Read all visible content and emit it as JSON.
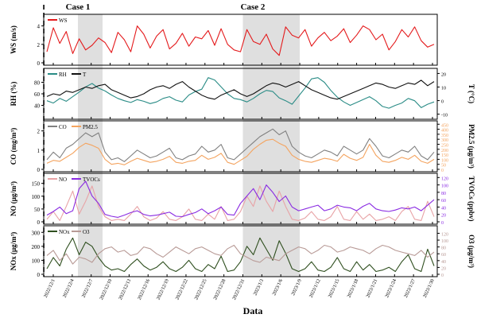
{
  "figure": {
    "case_labels": [
      "Case 1",
      "Case 2"
    ],
    "x_title": "Data",
    "colors": {
      "ws": "#e41a1c",
      "rh": "#2a8c86",
      "t": "#111111",
      "co": "#808080",
      "pm25": "#f4a460",
      "no": "#e8a3a6",
      "tvocs": "#8a2be2",
      "no2": "#2f4f1f",
      "o3": "#b89a96",
      "shade": "#d9d9d9"
    }
  },
  "chart_data": [
    {
      "type": "line",
      "panel": "WS",
      "x_tick_labels": [
        "2022/12/1",
        "2022/12/4",
        "2022/12/7",
        "2022/12/10",
        "2022/12/13",
        "2022/12/16",
        "2022/12/19",
        "2022/12/22",
        "2022/12/25",
        "2022/12/28",
        "2022/12/31",
        "2023/1/3",
        "2023/1/6",
        "2023/1/9",
        "2023/1/12",
        "2023/1/15",
        "2023/1/18",
        "2023/1/21",
        "2023/1/24",
        "2023/1/27",
        "2023/1/30"
      ],
      "xlabel": "Data",
      "ylabel_left": "WS (m/s)",
      "ylim_left": [
        0,
        5
      ],
      "yticks_left": [
        0,
        2,
        4
      ],
      "shaded_periods": [
        [
          "2022/12/5",
          "2022/12/9"
        ],
        [
          "2022/12/31",
          "2023/1/9"
        ]
      ],
      "break_after": "2022/12/30",
      "series": [
        {
          "name": "WS",
          "axis": "left",
          "values": [
            1.2,
            3.8,
            2.1,
            3.4,
            1.0,
            2.6,
            1.4,
            1.9,
            2.7,
            2.2,
            1.1,
            3.3,
            2.5,
            1.2,
            4.0,
            3.1,
            1.6,
            2.9,
            3.6,
            1.5,
            2.1,
            3.2,
            1.8,
            2.8,
            2.6,
            3.5,
            1.9,
            3.7,
            2.0,
            1.4,
            1.2,
            3.6,
            2.3,
            2.0,
            3.1,
            1.5,
            0.8,
            3.9,
            3.0,
            2.7,
            3.6,
            1.8,
            2.7,
            3.3,
            2.4,
            2.9,
            3.7,
            2.2,
            3.0,
            4.0,
            3.6,
            2.5,
            3.1,
            1.4,
            2.3,
            3.6,
            2.8,
            3.9,
            2.4,
            1.7,
            2.0
          ]
        }
      ]
    },
    {
      "type": "line",
      "panel": "RH/T",
      "ylabel_left": "RH (%)",
      "ylabel_right": "T (°C)",
      "ylim_left": [
        20,
        100
      ],
      "yticks_left": [
        40,
        60,
        80
      ],
      "ylim_right": [
        -12,
        22
      ],
      "yticks_right": [
        -10,
        0,
        10,
        20
      ],
      "series": [
        {
          "name": "RH",
          "axis": "left",
          "values": [
            48,
            44,
            52,
            47,
            55,
            63,
            72,
            78,
            70,
            65,
            58,
            52,
            48,
            45,
            50,
            47,
            43,
            46,
            52,
            55,
            49,
            46,
            58,
            64,
            68,
            88,
            84,
            72,
            60,
            52,
            50,
            46,
            52,
            60,
            66,
            64,
            53,
            48,
            42,
            56,
            70,
            86,
            88,
            80,
            66,
            54,
            46,
            40,
            45,
            50,
            55,
            48,
            38,
            35,
            40,
            44,
            52,
            48,
            36,
            42,
            46
          ]
        },
        {
          "name": "T",
          "axis": "right",
          "values": [
            3,
            5,
            4,
            7,
            6,
            8,
            10,
            9,
            11,
            12,
            8,
            6,
            4,
            2,
            3,
            5,
            8,
            10,
            11,
            9,
            12,
            14,
            10,
            7,
            4,
            2,
            1,
            4,
            6,
            8,
            5,
            3,
            5,
            8,
            11,
            13,
            12,
            10,
            12,
            14,
            11,
            8,
            6,
            4,
            2,
            1,
            3,
            5,
            7,
            9,
            11,
            13,
            12,
            10,
            9,
            11,
            13,
            12,
            15,
            11,
            14
          ]
        }
      ]
    },
    {
      "type": "line",
      "panel": "CO/PM2.5",
      "ylabel_left": "CO (mg/m³)",
      "ylabel_right": "PM2.5 (μg/m³)",
      "ylim_left": [
        0,
        2.4
      ],
      "yticks_left": [
        0,
        1,
        2
      ],
      "ylim_right": [
        0,
        460
      ],
      "yticks_right": [
        0,
        50,
        100,
        150,
        200,
        250,
        300,
        350,
        400,
        450
      ],
      "series": [
        {
          "name": "CO",
          "axis": "left",
          "values": [
            0.5,
            0.9,
            0.6,
            1.1,
            1.3,
            1.6,
            1.9,
            1.7,
            1.9,
            0.9,
            0.5,
            0.6,
            0.4,
            0.7,
            1.0,
            0.8,
            0.6,
            0.7,
            0.9,
            1.1,
            0.6,
            0.5,
            0.7,
            0.8,
            1.2,
            0.9,
            1.0,
            1.3,
            0.6,
            0.5,
            0.8,
            1.1,
            1.4,
            1.7,
            1.9,
            2.1,
            1.8,
            2.0,
            1.2,
            0.9,
            0.7,
            0.6,
            0.8,
            1.0,
            0.9,
            0.7,
            1.2,
            1.0,
            0.8,
            1.0,
            1.6,
            1.2,
            0.7,
            0.6,
            0.8,
            1.0,
            0.9,
            1.2,
            0.7,
            0.5,
            0.9
          ]
        },
        {
          "name": "PM2.5",
          "axis": "right",
          "values": [
            60,
            90,
            80,
            120,
            160,
            220,
            260,
            240,
            210,
            100,
            50,
            60,
            45,
            80,
            110,
            90,
            70,
            80,
            100,
            130,
            70,
            60,
            80,
            90,
            140,
            100,
            120,
            160,
            70,
            50,
            90,
            130,
            200,
            250,
            290,
            300,
            260,
            230,
            140,
            100,
            80,
            70,
            90,
            110,
            100,
            80,
            150,
            110,
            90,
            120,
            250,
            140,
            80,
            70,
            90,
            120,
            100,
            140,
            80,
            60,
            100
          ]
        }
      ]
    },
    {
      "type": "line",
      "panel": "NO/TVOCs",
      "ylabel_left": "NO (μg/m³)",
      "ylabel_right": "TVOCs (ppbv)",
      "ylim_left": [
        0,
        180
      ],
      "yticks_left": [
        0,
        50,
        100,
        150
      ],
      "ylim_right": [
        0,
        125
      ],
      "yticks_right": [
        0,
        20,
        40,
        60,
        80,
        100,
        120
      ],
      "series": [
        {
          "name": "NO",
          "axis": "left",
          "values": [
            10,
            40,
            5,
            60,
            120,
            30,
            80,
            140,
            60,
            20,
            5,
            10,
            5,
            30,
            60,
            20,
            5,
            15,
            40,
            10,
            5,
            20,
            50,
            10,
            5,
            30,
            10,
            60,
            5,
            10,
            40,
            100,
            60,
            140,
            80,
            40,
            120,
            60,
            10,
            5,
            15,
            40,
            10,
            5,
            20,
            60,
            10,
            5,
            40,
            10,
            30,
            5,
            10,
            20,
            5,
            40,
            60,
            10,
            5,
            80,
            20
          ]
        },
        {
          "name": "TVOCs",
          "axis": "right",
          "values": [
            18,
            28,
            40,
            22,
            30,
            90,
            110,
            70,
            50,
            20,
            15,
            12,
            18,
            25,
            30,
            20,
            16,
            18,
            22,
            26,
            15,
            14,
            20,
            25,
            35,
            22,
            30,
            40,
            20,
            18,
            50,
            70,
            90,
            60,
            100,
            80,
            55,
            70,
            40,
            30,
            35,
            40,
            45,
            30,
            35,
            45,
            40,
            38,
            30,
            42,
            50,
            35,
            30,
            28,
            32,
            38,
            35,
            40,
            30,
            45,
            60
          ]
        }
      ]
    },
    {
      "type": "line",
      "panel": "NOx/O3",
      "ylabel_left": "NOx (μg/m³)",
      "ylabel_right": "O3 (μg/m³)",
      "ylim_left": [
        0,
        330
      ],
      "yticks_left": [
        0,
        100,
        200,
        300
      ],
      "ylim_right": [
        0,
        135
      ],
      "yticks_right": [
        0,
        20,
        40,
        60,
        80,
        100,
        120
      ],
      "series": [
        {
          "name": "NOx",
          "axis": "left",
          "values": [
            40,
            120,
            60,
            180,
            260,
            140,
            230,
            200,
            120,
            60,
            30,
            40,
            20,
            70,
            110,
            60,
            30,
            50,
            90,
            40,
            20,
            50,
            100,
            40,
            20,
            70,
            40,
            130,
            20,
            30,
            90,
            200,
            140,
            260,
            180,
            100,
            240,
            150,
            40,
            20,
            40,
            90,
            30,
            20,
            50,
            120,
            40,
            20,
            90,
            30,
            70,
            20,
            30,
            50,
            20,
            90,
            140,
            40,
            20,
            180,
            60
          ]
        },
        {
          "name": "O3",
          "axis": "right",
          "values": [
            55,
            70,
            40,
            60,
            30,
            50,
            45,
            35,
            60,
            75,
            80,
            65,
            70,
            55,
            60,
            80,
            75,
            60,
            50,
            65,
            80,
            70,
            60,
            75,
            80,
            70,
            60,
            55,
            75,
            85,
            60,
            50,
            40,
            35,
            50,
            45,
            40,
            60,
            70,
            80,
            75,
            60,
            70,
            85,
            80,
            65,
            70,
            80,
            75,
            70,
            60,
            75,
            85,
            80,
            70,
            65,
            60,
            55,
            70,
            50,
            65
          ]
        }
      ]
    }
  ]
}
